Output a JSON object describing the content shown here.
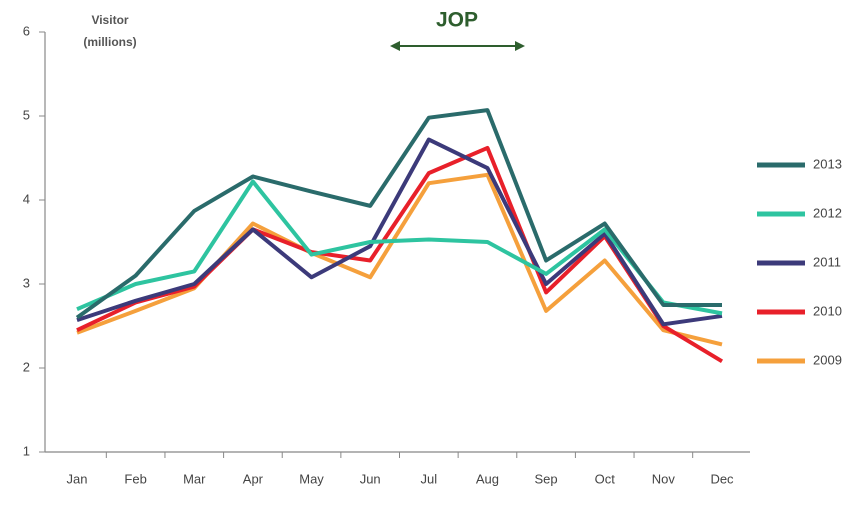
{
  "chart_data": {
    "type": "line",
    "y_label": [
      "Visitor",
      "(millions)"
    ],
    "annotation": "JOP",
    "annotation_color": "#2e5e2e",
    "categories": [
      "Jan",
      "Feb",
      "Mar",
      "Apr",
      "May",
      "Jun",
      "Jul",
      "Aug",
      "Sep",
      "Oct",
      "Nov",
      "Dec"
    ],
    "series": [
      {
        "name": "2013",
        "color": "#2a6b6b",
        "values": [
          2.6,
          3.1,
          3.87,
          4.28,
          4.1,
          3.93,
          4.98,
          5.07,
          3.28,
          3.72,
          2.75,
          2.75
        ]
      },
      {
        "name": "2012",
        "color": "#2ec4a0",
        "values": [
          2.7,
          3.0,
          3.15,
          4.22,
          3.35,
          3.5,
          3.53,
          3.5,
          3.12,
          3.65,
          2.78,
          2.65
        ]
      },
      {
        "name": "2011",
        "color": "#3c3a7a",
        "values": [
          2.57,
          2.8,
          3.0,
          3.65,
          3.08,
          3.45,
          4.72,
          4.38,
          3.0,
          3.6,
          2.52,
          2.62
        ]
      },
      {
        "name": "2010",
        "color": "#e8202a",
        "values": [
          2.45,
          2.78,
          2.97,
          3.65,
          3.38,
          3.28,
          4.32,
          4.62,
          2.9,
          3.57,
          2.5,
          2.08
        ]
      },
      {
        "name": "2009",
        "color": "#f5a03c",
        "values": [
          2.42,
          2.68,
          2.95,
          3.72,
          3.37,
          3.08,
          4.2,
          4.3,
          2.68,
          3.28,
          2.45,
          2.28
        ]
      }
    ],
    "ylim": [
      1,
      6
    ],
    "yticks": [
      1,
      2,
      3,
      4,
      5,
      6
    ],
    "grid": false,
    "legend": "right"
  }
}
